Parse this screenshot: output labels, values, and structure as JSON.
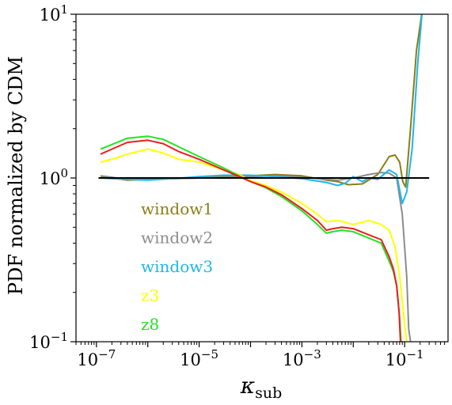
{
  "chart_data": {
    "type": "line",
    "xscale": "log",
    "yscale": "log",
    "xlim": [
      4e-08,
      0.7
    ],
    "ylim": [
      0.1,
      10
    ],
    "xlabel": "κ",
    "xlabel_sub": "sub",
    "ylabel": "PDF normalized by CDM",
    "x_ticks": [
      {
        "value": 1e-07,
        "base": "10",
        "exp": "−7"
      },
      {
        "value": 1e-05,
        "base": "10",
        "exp": "−5"
      },
      {
        "value": 0.001,
        "base": "10",
        "exp": "−3"
      },
      {
        "value": 0.1,
        "base": "10",
        "exp": "−1"
      }
    ],
    "y_ticks": [
      {
        "value": 0.1,
        "base": "10",
        "exp": "−1"
      },
      {
        "value": 1,
        "base": "10",
        "exp": "0"
      },
      {
        "value": 10,
        "base": "10",
        "exp": "1"
      }
    ],
    "grid": false,
    "legend_position": "left-center",
    "reference_line": {
      "y": 1.0,
      "x": [
        1.1e-07,
        0.3
      ],
      "color": "#000000"
    },
    "series": [
      {
        "name": "window1",
        "color": "#8B7D15",
        "x": [
          1.2e-07,
          2e-07,
          4e-07,
          1e-06,
          3e-06,
          1e-05,
          3e-05,
          0.0001,
          0.0003,
          0.001,
          0.003,
          0.005,
          0.008,
          0.015,
          0.03,
          0.05,
          0.065,
          0.08,
          0.092,
          0.105,
          0.13,
          0.17,
          0.22
        ],
        "y": [
          1.02,
          1.0,
          0.97,
          0.98,
          0.99,
          1.0,
          1.02,
          1.03,
          1.05,
          1.03,
          0.97,
          0.95,
          0.91,
          0.92,
          1.05,
          1.35,
          1.38,
          1.25,
          0.95,
          0.88,
          2.0,
          6.0,
          10.5
        ]
      },
      {
        "name": "window2",
        "color": "#8C8C8C",
        "x": [
          1.2e-07,
          2e-07,
          4e-07,
          1e-06,
          3e-06,
          1e-05,
          3e-05,
          0.0001,
          0.0003,
          0.001,
          0.003,
          0.005,
          0.01,
          0.02,
          0.035,
          0.05,
          0.07,
          0.09,
          0.11,
          0.12,
          0.13
        ],
        "y": [
          1.03,
          1.01,
          0.98,
          0.98,
          0.99,
          1.0,
          1.01,
          1.02,
          1.03,
          1.01,
          0.98,
          0.97,
          1.0,
          1.05,
          1.08,
          1.07,
          1.0,
          0.6,
          0.25,
          0.12,
          0.1
        ]
      },
      {
        "name": "window3",
        "color": "#1FB6E9",
        "x": [
          1.2e-07,
          2e-07,
          4e-07,
          1e-06,
          3e-06,
          1e-05,
          3e-05,
          0.0001,
          0.0003,
          0.001,
          0.003,
          0.005,
          0.007,
          0.01,
          0.015,
          0.02,
          0.03,
          0.05,
          0.07,
          0.09,
          0.11,
          0.14,
          0.18,
          0.22
        ],
        "y": [
          1.0,
          0.99,
          0.98,
          0.97,
          0.99,
          1.02,
          1.04,
          1.04,
          1.02,
          0.99,
          0.94,
          0.9,
          0.93,
          1.02,
          0.95,
          1.0,
          0.98,
          1.12,
          1.05,
          0.7,
          0.82,
          1.5,
          5.0,
          10.5
        ]
      },
      {
        "name": "z3",
        "color": "#FFFF00",
        "x": [
          1.2e-07,
          2e-07,
          4e-07,
          1e-06,
          2e-06,
          4e-06,
          1e-05,
          3e-05,
          6e-05,
          0.0001,
          0.0002,
          0.0004,
          0.001,
          0.002,
          0.003,
          0.005,
          0.01,
          0.02,
          0.035,
          0.05,
          0.065,
          0.08,
          0.095,
          0.105,
          0.11
        ],
        "y": [
          1.25,
          1.3,
          1.4,
          1.5,
          1.42,
          1.3,
          1.25,
          1.12,
          1.05,
          0.96,
          0.9,
          0.82,
          0.7,
          0.6,
          0.54,
          0.55,
          0.52,
          0.55,
          0.52,
          0.48,
          0.38,
          0.25,
          0.15,
          0.11,
          0.1
        ]
      },
      {
        "name": "z8",
        "color": "#22E322",
        "x": [
          1.2e-07,
          2e-07,
          4e-07,
          1e-06,
          2e-06,
          4e-06,
          1e-05,
          3e-05,
          6e-05,
          0.0001,
          0.0002,
          0.0004,
          0.001,
          0.002,
          0.003,
          0.004,
          0.006,
          0.01,
          0.02,
          0.035,
          0.05,
          0.06,
          0.07,
          0.08,
          0.085
        ],
        "y": [
          1.5,
          1.6,
          1.75,
          1.8,
          1.72,
          1.55,
          1.35,
          1.15,
          1.03,
          0.95,
          0.87,
          0.77,
          0.63,
          0.52,
          0.46,
          0.47,
          0.48,
          0.47,
          0.43,
          0.4,
          0.31,
          0.27,
          0.22,
          0.14,
          0.1
        ]
      },
      {
        "name": "",
        "color": "#EE1C1C",
        "x": [
          1.2e-07,
          2e-07,
          4e-07,
          1e-06,
          2e-06,
          4e-06,
          1e-05,
          3e-05,
          6e-05,
          0.0001,
          0.0002,
          0.0004,
          0.001,
          0.002,
          0.003,
          0.004,
          0.006,
          0.01,
          0.02,
          0.035,
          0.05,
          0.06,
          0.07,
          0.078,
          0.083
        ],
        "y": [
          1.4,
          1.5,
          1.65,
          1.7,
          1.62,
          1.45,
          1.3,
          1.12,
          1.02,
          0.95,
          0.88,
          0.79,
          0.65,
          0.55,
          0.48,
          0.49,
          0.5,
          0.49,
          0.45,
          0.42,
          0.33,
          0.28,
          0.22,
          0.15,
          0.1
        ]
      }
    ]
  }
}
